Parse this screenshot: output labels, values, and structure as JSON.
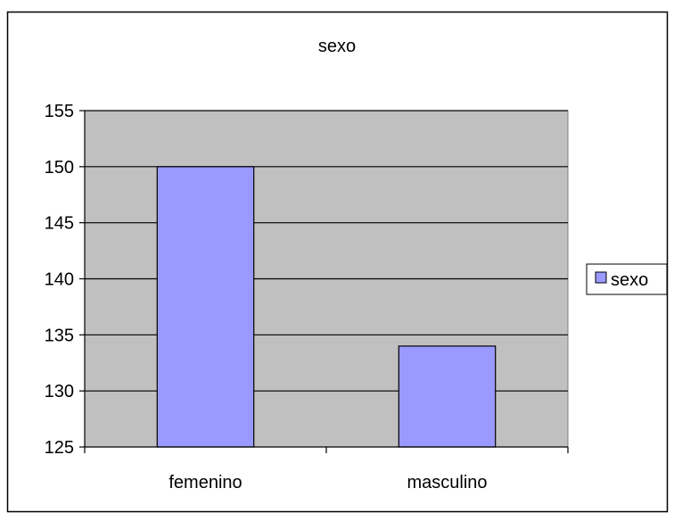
{
  "chart_data": {
    "type": "bar",
    "title": "sexo",
    "categories": [
      "femenino",
      "masculino"
    ],
    "series": [
      {
        "name": "sexo",
        "values": [
          150,
          134
        ],
        "color": "#9999ff"
      }
    ],
    "ylim": [
      125,
      155
    ],
    "yticks": [
      125,
      130,
      135,
      140,
      145,
      150,
      155
    ],
    "grid": true,
    "plot_background": "#c0c0c0",
    "legend": {
      "position": "right",
      "entries": [
        "sexo"
      ]
    }
  }
}
